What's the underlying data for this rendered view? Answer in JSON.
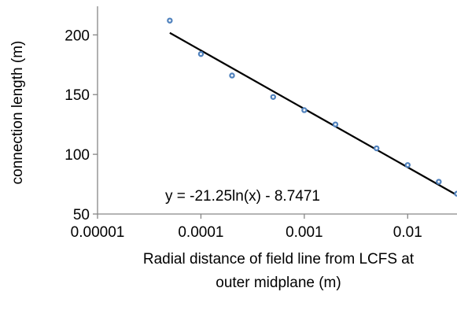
{
  "chart_data": {
    "type": "scatter",
    "title": "",
    "xlabel_lines": [
      "Radial distance of field line from  LCFS at",
      "outer midplane (m)"
    ],
    "ylabel": "connection length (m)",
    "x_scale": "log",
    "xlim": [
      1e-05,
      0.03
    ],
    "ylim": [
      50,
      220
    ],
    "x_tick_labels": [
      "0.00001",
      "0.0001",
      "0.001",
      "0.01"
    ],
    "x_tick_values": [
      1e-05,
      0.0001,
      0.001,
      0.01
    ],
    "y_tick_labels": [
      "50",
      "100",
      "150",
      "200"
    ],
    "y_tick_values": [
      50,
      100,
      150,
      200
    ],
    "grid": false,
    "legend": "none",
    "series": [
      {
        "marker_color": "#4F81BD",
        "x": [
          5e-05,
          0.0001,
          0.0002,
          0.0005,
          0.001,
          0.002,
          0.005,
          0.01,
          0.02,
          0.03
        ],
        "y": [
          212,
          184,
          166,
          148,
          137,
          125,
          105,
          91,
          77,
          67
        ]
      }
    ],
    "trendline": {
      "equation_label": "y = -21.25ln(x) - 8.7471",
      "a": -21.25,
      "b": -8.7471,
      "x_start": 5e-05,
      "color": "#000000"
    }
  }
}
